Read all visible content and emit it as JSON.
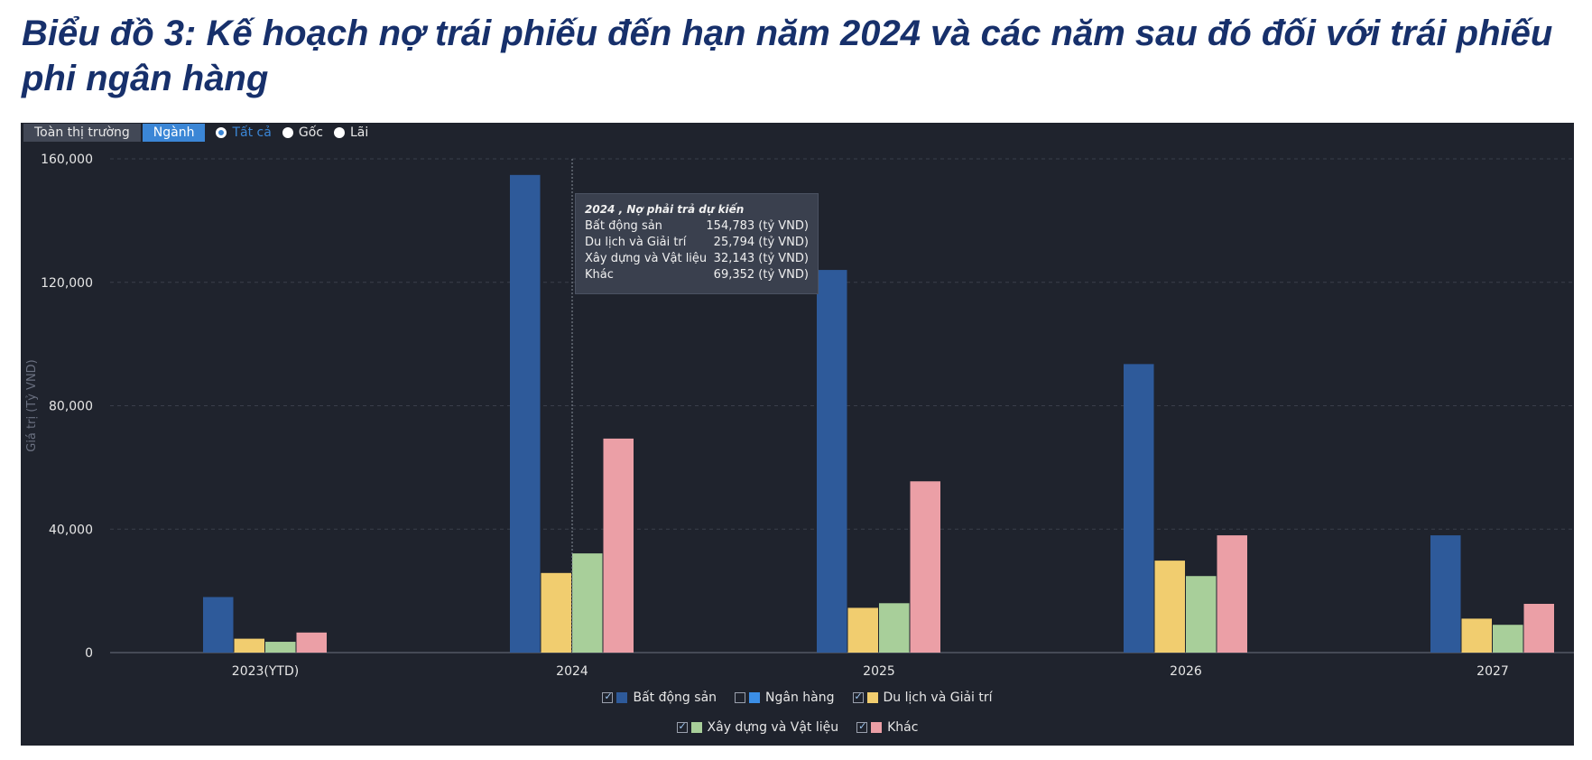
{
  "title": "Biểu đồ 3: Kế hoạch nợ trái phiếu đến hạn năm 2024 và các năm sau đó đối với trái phiếu phi ngân hàng",
  "toolbar": {
    "all_market_label": "Toàn thị trường",
    "industry_label": "Ngành",
    "radio_all": "Tất cả",
    "radio_principal": "Gốc",
    "radio_interest": "Lãi"
  },
  "tooltip": {
    "title": "2024 , Nợ phải trả dự kiến",
    "rows": [
      {
        "name": "Bất động sản",
        "value": "154,783 (tỷ VND)"
      },
      {
        "name": "Du lịch và Giải trí",
        "value": "25,794 (tỷ VND)"
      },
      {
        "name": "Xây dựng và Vật liệu",
        "value": "32,143 (tỷ VND)"
      },
      {
        "name": "Khác",
        "value": "69,352 (tỷ VND)"
      }
    ]
  },
  "chart_data": {
    "type": "bar",
    "categories": [
      "2023(YTD)",
      "2024",
      "2025",
      "2026",
      "2027"
    ],
    "ylabel": "Giá trị (Tỷ VND)",
    "xlabel": "",
    "ylim": [
      0,
      160000
    ],
    "yticks": [
      "0",
      "40,000",
      "80,000",
      "120,000",
      "160,000"
    ],
    "grid": true,
    "legend_position": "bottom",
    "series": [
      {
        "name": "Bất động sản",
        "color": "#2e5a9a",
        "visible": true,
        "values": [
          18000,
          154783,
          124000,
          93500,
          38000
        ]
      },
      {
        "name": "Ngân hàng",
        "color": "#3b8ee6",
        "visible": false,
        "values": [
          null,
          null,
          null,
          null,
          null
        ]
      },
      {
        "name": "Du lịch và Giải trí",
        "color": "#f1cd6f",
        "visible": true,
        "values": [
          4500,
          25794,
          14500,
          29800,
          11000
        ]
      },
      {
        "name": "Xây dựng và Vật liệu",
        "color": "#a8cf9a",
        "visible": true,
        "values": [
          3500,
          32143,
          16000,
          24800,
          9000
        ]
      },
      {
        "name": "Khác",
        "color": "#eb9fa6",
        "visible": true,
        "values": [
          6500,
          69352,
          55500,
          38000,
          15800
        ]
      }
    ]
  }
}
